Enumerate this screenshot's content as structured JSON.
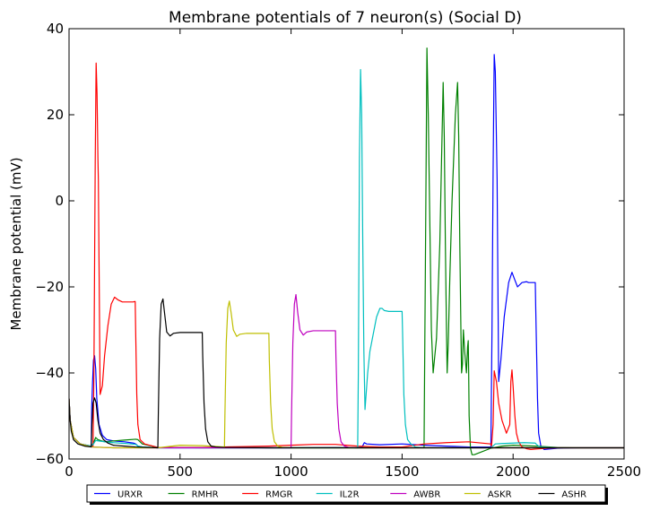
{
  "chart_data": {
    "type": "line",
    "title": "Membrane potentials of 7 neuron(s) (Social D)",
    "xlabel": "",
    "ylabel": "Membrane potential (mV)",
    "xlim": [
      0,
      2500
    ],
    "ylim": [
      -60,
      40
    ],
    "xticks": [
      0,
      500,
      1000,
      1500,
      2000,
      2500
    ],
    "yticks": [
      -60,
      -40,
      -20,
      0,
      20,
      40
    ],
    "xtick_labels": [
      "0",
      "500",
      "1000",
      "1500",
      "2000",
      "2500"
    ],
    "ytick_labels": [
      "−60",
      "−40",
      "−20",
      "0",
      "20",
      "40"
    ],
    "grid": false,
    "legend_position": "bottom, below plot",
    "series": [
      {
        "name": "URXR",
        "color": "#0000ff",
        "x": [
          0,
          5,
          20,
          50,
          90,
          100,
          102,
          106,
          110,
          115,
          120,
          125,
          135,
          150,
          170,
          200,
          250,
          290,
          300,
          310,
          330,
          400,
          600,
          800,
          1000,
          1200,
          1300,
          1320,
          1330,
          1340,
          1400,
          1500,
          1600,
          1700,
          1800,
          1880,
          1898,
          1900,
          1905,
          1910,
          1915,
          1920,
          1928,
          1935,
          1945,
          1960,
          1980,
          1995,
          2005,
          2020,
          2040,
          2060,
          2070,
          2090,
          2100,
          2102,
          2110,
          2115,
          2125,
          2140,
          2160,
          2200,
          2300,
          2400,
          2500
        ],
        "y": [
          -46,
          -51,
          -55,
          -56.5,
          -57,
          -57,
          -48,
          -42,
          -37,
          -36,
          -39,
          -46,
          -52,
          -54.5,
          -55.5,
          -55.8,
          -56,
          -56.3,
          -56.5,
          -57,
          -57.2,
          -57.4,
          -57.4,
          -57.4,
          -57.4,
          -57.3,
          -57.4,
          -57.2,
          -56.2,
          -56.5,
          -56.7,
          -56.5,
          -56.8,
          -57,
          -57.2,
          -57.2,
          -57.2,
          -57.2,
          -30,
          7,
          34,
          30,
          5,
          -42,
          -37,
          -27,
          -19,
          -16.6,
          -18,
          -20,
          -19,
          -18.8,
          -19,
          -19,
          -19,
          -25,
          -46,
          -54,
          -57,
          -57.8,
          -57.7,
          -57.5,
          -57.4,
          -57.4,
          -57.4
        ]
      },
      {
        "name": "RMHR",
        "color": "#008000",
        "x": [
          0,
          5,
          20,
          50,
          100,
          110,
          120,
          130,
          160,
          200,
          250,
          300,
          310,
          330,
          400,
          600,
          800,
          1000,
          1200,
          1400,
          1500,
          1590,
          1599,
          1600,
          1605,
          1612,
          1618,
          1625,
          1632,
          1640,
          1655,
          1670,
          1678,
          1685,
          1690,
          1695,
          1700,
          1703,
          1708,
          1715,
          1725,
          1740,
          1750,
          1755,
          1760,
          1765,
          1768,
          1772,
          1776,
          1782,
          1790,
          1795,
          1798,
          1800,
          1802,
          1808,
          1815,
          1825,
          1850,
          1900,
          1950,
          2000,
          2050,
          2100,
          2200,
          2300,
          2400,
          2500
        ],
        "y": [
          -46,
          -51,
          -55,
          -56.5,
          -57,
          -56.3,
          -55,
          -55.5,
          -56,
          -55.8,
          -55.6,
          -55.4,
          -55.5,
          -56.5,
          -57.3,
          -57.4,
          -57.4,
          -57.4,
          -57.4,
          -57.4,
          -57.4,
          -57.4,
          -57.4,
          -50,
          -15,
          35.5,
          20,
          -5,
          -30,
          -40,
          -32,
          -10,
          10,
          27.5,
          15,
          -10,
          -30,
          -40,
          -33,
          -18,
          0,
          20,
          27.5,
          15,
          -10,
          -30,
          -40,
          -38,
          -30,
          -35,
          -40,
          -34,
          -32.5,
          -40,
          -50,
          -57.5,
          -59,
          -59,
          -58.5,
          -57.5,
          -57,
          -56.8,
          -56.9,
          -57,
          -57.3,
          -57.4,
          -57.4,
          -57.4
        ]
      },
      {
        "name": "RMGR",
        "color": "#ff0000",
        "x": [
          0,
          5,
          20,
          50,
          100,
          108,
          112,
          118,
          122,
          126,
          130,
          132,
          140,
          150,
          160,
          175,
          190,
          205,
          220,
          240,
          260,
          280,
          290,
          295,
          298,
          300,
          305,
          310,
          320,
          340,
          400,
          500,
          600,
          700,
          800,
          900,
          1000,
          1100,
          1200,
          1300,
          1400,
          1500,
          1600,
          1700,
          1800,
          1900,
          1903,
          1910,
          1915,
          1925,
          1935,
          1950,
          1970,
          1985,
          1990,
          1995,
          2000,
          2008,
          2015,
          2025,
          2040,
          2060,
          2080,
          2100,
          2150,
          2200,
          2300,
          2400,
          2500
        ],
        "y": [
          -46,
          -51,
          -55,
          -56.5,
          -57,
          -57,
          -40,
          10,
          32,
          25,
          10,
          5,
          -45,
          -43,
          -36,
          -29,
          -24,
          -22.4,
          -23,
          -23.5,
          -23.5,
          -23.5,
          -23.5,
          -23.4,
          -23.4,
          -30,
          -45,
          -52,
          -55.5,
          -56.5,
          -57.3,
          -57.3,
          -57.3,
          -57.2,
          -57.1,
          -57,
          -56.8,
          -56.6,
          -56.6,
          -57,
          -57.2,
          -57.2,
          -56.5,
          -56.2,
          -56,
          -56.5,
          -57,
          -52,
          -39.5,
          -42,
          -47,
          -51,
          -54,
          -52,
          -42,
          -39.3,
          -43,
          -50,
          -54,
          -56,
          -57.2,
          -57.6,
          -57.8,
          -57.7,
          -57.5,
          -57.4,
          -57.4,
          -57.4,
          -57.4
        ]
      },
      {
        "name": "IL2R",
        "color": "#00bfbf",
        "x": [
          0,
          5,
          20,
          50,
          100,
          110,
          120,
          160,
          200,
          260,
          300,
          310,
          330,
          400,
          600,
          800,
          1000,
          1200,
          1300,
          1303,
          1308,
          1313,
          1318,
          1323,
          1328,
          1333,
          1338,
          1345,
          1355,
          1370,
          1385,
          1400,
          1410,
          1420,
          1440,
          1460,
          1490,
          1500,
          1502,
          1508,
          1515,
          1525,
          1540,
          1560,
          1600,
          1800,
          1900,
          1920,
          1950,
          2000,
          2050,
          2100,
          2105,
          2120,
          2200,
          2300,
          2400,
          2500
        ],
        "y": [
          -46,
          -51,
          -55,
          -56.5,
          -57,
          -56.5,
          -55.7,
          -56,
          -56.2,
          -56.4,
          -56.6,
          -57,
          -57.2,
          -57.4,
          -57.4,
          -57.4,
          -57.4,
          -57.4,
          -57.4,
          -40,
          10,
          30.5,
          20,
          -10,
          -35,
          -48.5,
          -45,
          -40,
          -35,
          -31,
          -27,
          -25,
          -25,
          -25.5,
          -25.7,
          -25.7,
          -25.7,
          -25.7,
          -30,
          -45,
          -52,
          -55.5,
          -56.5,
          -57.2,
          -57.4,
          -57.4,
          -57.4,
          -56.5,
          -56.4,
          -56.3,
          -56.2,
          -56.3,
          -56.6,
          -57.2,
          -57.4,
          -57.4,
          -57.4,
          -57.4
        ]
      },
      {
        "name": "AWBR",
        "color": "#bf00bf",
        "x": [
          0,
          5,
          20,
          50,
          100,
          200,
          400,
          600,
          800,
          900,
          1000,
          1002,
          1008,
          1015,
          1022,
          1030,
          1040,
          1055,
          1070,
          1100,
          1150,
          1195,
          1200,
          1202,
          1208,
          1215,
          1225,
          1240,
          1260,
          1300,
          1600,
          2000,
          2500
        ],
        "y": [
          -46,
          -51,
          -55,
          -56.5,
          -57.2,
          -57.4,
          -57.4,
          -57.4,
          -57.4,
          -57.4,
          -57.4,
          -50,
          -33,
          -24,
          -21.8,
          -26,
          -30,
          -31.2,
          -30.5,
          -30.2,
          -30.2,
          -30.2,
          -30.2,
          -36,
          -47,
          -53,
          -56,
          -57,
          -57.3,
          -57.4,
          -57.4,
          -57.4,
          -57.4
        ]
      },
      {
        "name": "ASKR",
        "color": "#bfbf00",
        "x": [
          0,
          5,
          20,
          50,
          100,
          200,
          400,
          500,
          600,
          700,
          702,
          708,
          715,
          722,
          730,
          740,
          755,
          770,
          800,
          850,
          895,
          900,
          902,
          908,
          915,
          925,
          940,
          960,
          1000,
          1200,
          1600,
          2000,
          2500
        ],
        "y": [
          -46,
          -51,
          -55,
          -56.5,
          -57.2,
          -57.4,
          -57.4,
          -56.8,
          -56.9,
          -57.2,
          -50,
          -33,
          -25,
          -23.3,
          -26,
          -30,
          -31.5,
          -31,
          -30.8,
          -30.8,
          -30.8,
          -30.8,
          -37,
          -47,
          -53,
          -56,
          -57,
          -57.3,
          -57.4,
          -57.4,
          -57.4,
          -57.4,
          -57.4
        ]
      },
      {
        "name": "ASHR",
        "color": "#000000",
        "x": [
          0,
          2,
          5,
          10,
          20,
          40,
          70,
          100,
          103,
          108,
          115,
          122,
          130,
          140,
          155,
          175,
          200,
          250,
          300,
          350,
          400,
          402,
          408,
          415,
          423,
          430,
          440,
          455,
          470,
          500,
          550,
          595,
          600,
          602,
          608,
          615,
          625,
          640,
          660,
          700,
          900,
          1200,
          1600,
          2000,
          2500
        ],
        "y": [
          -46,
          -48,
          -51,
          -53.5,
          -55.5,
          -56.5,
          -57,
          -57.2,
          -52,
          -47,
          -45.8,
          -47,
          -51,
          -54,
          -55.5,
          -56.3,
          -56.8,
          -57,
          -57.2,
          -57.3,
          -57.4,
          -50,
          -32,
          -24,
          -22.8,
          -26,
          -30.5,
          -31.4,
          -30.8,
          -30.6,
          -30.6,
          -30.6,
          -30.6,
          -36,
          -47,
          -53,
          -56,
          -57,
          -57.2,
          -57.3,
          -57.4,
          -57.4,
          -57.4,
          -57.4,
          -57.4
        ]
      }
    ]
  }
}
